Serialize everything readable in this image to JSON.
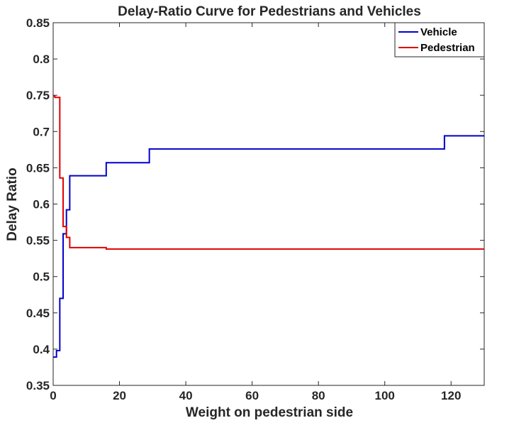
{
  "chart_data": {
    "type": "line",
    "title": "Delay-Ratio Curve for Pedestrians and Vehicles",
    "xlabel": "Weight on pedestrian side",
    "ylabel": "Delay Ratio",
    "xlim": [
      0,
      130
    ],
    "ylim": [
      0.35,
      0.85
    ],
    "xticks": [
      0,
      20,
      40,
      60,
      80,
      100,
      120
    ],
    "yticks": [
      0.35,
      0.4,
      0.45,
      0.5,
      0.55,
      0.6,
      0.65,
      0.7,
      0.75,
      0.8,
      0.85
    ],
    "ytick_labels": [
      "0.35",
      "0.4",
      "0.45",
      "0.5",
      "0.55",
      "0.6",
      "0.65",
      "0.7",
      "0.75",
      "0.8",
      "0.85"
    ],
    "grid": false,
    "legend": "top-right",
    "series": [
      {
        "name": "Vehicle",
        "color": "#0000cc",
        "step": true,
        "points": [
          [
            0,
            0.389
          ],
          [
            1,
            0.389
          ],
          [
            1,
            0.398
          ],
          [
            2,
            0.398
          ],
          [
            2,
            0.47
          ],
          [
            3,
            0.47
          ],
          [
            3,
            0.559
          ],
          [
            4,
            0.559
          ],
          [
            4,
            0.592
          ],
          [
            5,
            0.592
          ],
          [
            5,
            0.639
          ],
          [
            16,
            0.639
          ],
          [
            16,
            0.657
          ],
          [
            29,
            0.657
          ],
          [
            29,
            0.676
          ],
          [
            118,
            0.676
          ],
          [
            118,
            0.694
          ],
          [
            130,
            0.694
          ]
        ]
      },
      {
        "name": "Pedestrian",
        "color": "#e00000",
        "step": true,
        "points": [
          [
            0,
            0.749
          ],
          [
            0.5,
            0.749
          ],
          [
            0.5,
            0.747
          ],
          [
            2,
            0.747
          ],
          [
            2,
            0.636
          ],
          [
            3,
            0.636
          ],
          [
            3,
            0.569
          ],
          [
            4,
            0.569
          ],
          [
            4,
            0.554
          ],
          [
            5,
            0.554
          ],
          [
            5,
            0.54
          ],
          [
            16,
            0.54
          ],
          [
            16,
            0.538
          ],
          [
            130,
            0.538
          ]
        ]
      }
    ]
  }
}
